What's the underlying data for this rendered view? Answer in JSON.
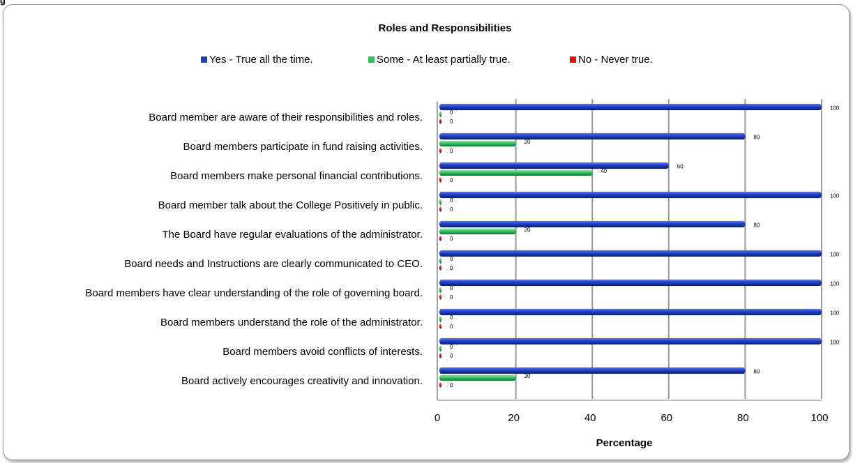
{
  "figure_label": "g",
  "chart_data": {
    "type": "bar",
    "orientation": "horizontal",
    "title": "Roles and Responsibilities",
    "xlabel": "Percentage",
    "ylabel": "",
    "xlim": [
      0,
      100
    ],
    "xticks": [
      "0",
      "20",
      "40",
      "60",
      "80",
      "100"
    ],
    "grid": true,
    "legend_position": "top",
    "categories": [
      "Board member are aware of their responsibilities and roles.",
      "Board members participate in fund raising activities.",
      "Board members make personal financial contributions.",
      "Board member talk about the College Positively in public.",
      "The Board have regular evaluations of the administrator.",
      "Board needs and Instructions are clearly communicated to CEO.",
      "Board members have clear understanding of the role of governing board.",
      "Board members understand the role of the administrator.",
      "Board members avoid conflicts of interests.",
      "Board actively encourages creativity and innovation."
    ],
    "series": [
      {
        "name": "Yes - True all the time.",
        "color": "#1f3fbf",
        "values": [
          100,
          80,
          60,
          100,
          80,
          100,
          100,
          100,
          100,
          80
        ]
      },
      {
        "name": "Some - At least partially true.",
        "color": "#2fbf5f",
        "values": [
          0,
          20,
          40,
          0,
          20,
          0,
          0,
          0,
          0,
          20
        ]
      },
      {
        "name": "No - Never true.",
        "color": "#e01010",
        "values": [
          0,
          0,
          0,
          0,
          0,
          0,
          0,
          0,
          0,
          0
        ]
      }
    ]
  }
}
